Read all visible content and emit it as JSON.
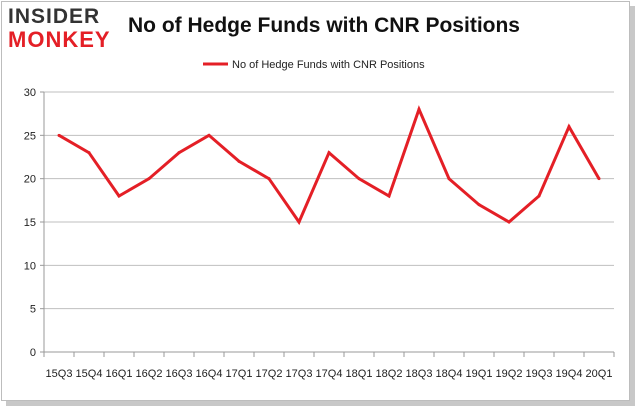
{
  "logo": {
    "line1": "INSIDER",
    "line2": "MONKEY"
  },
  "colors": {
    "series": "#e41f26",
    "axis": "#999999",
    "grid": "#bfbfbf",
    "logo_accent": "#e41f26"
  },
  "chart_data": {
    "type": "line",
    "title": "No of Hedge Funds with CNR Positions",
    "xlabel": "",
    "ylabel": "",
    "ylim": [
      0,
      30
    ],
    "yticks": [
      0,
      5,
      10,
      15,
      20,
      25,
      30
    ],
    "grid": true,
    "legend_position": "top-center",
    "categories": [
      "15Q3",
      "15Q4",
      "16Q1",
      "16Q2",
      "16Q3",
      "16Q4",
      "17Q1",
      "17Q2",
      "17Q3",
      "17Q4",
      "18Q1",
      "18Q2",
      "18Q3",
      "18Q4",
      "19Q1",
      "19Q2",
      "19Q3",
      "19Q4",
      "20Q1"
    ],
    "series": [
      {
        "name": "No of Hedge Funds with CNR Positions",
        "values": [
          25,
          23,
          18,
          20,
          23,
          25,
          22,
          20,
          15,
          23,
          20,
          18,
          28,
          20,
          17,
          15,
          18,
          26,
          20
        ]
      }
    ]
  }
}
